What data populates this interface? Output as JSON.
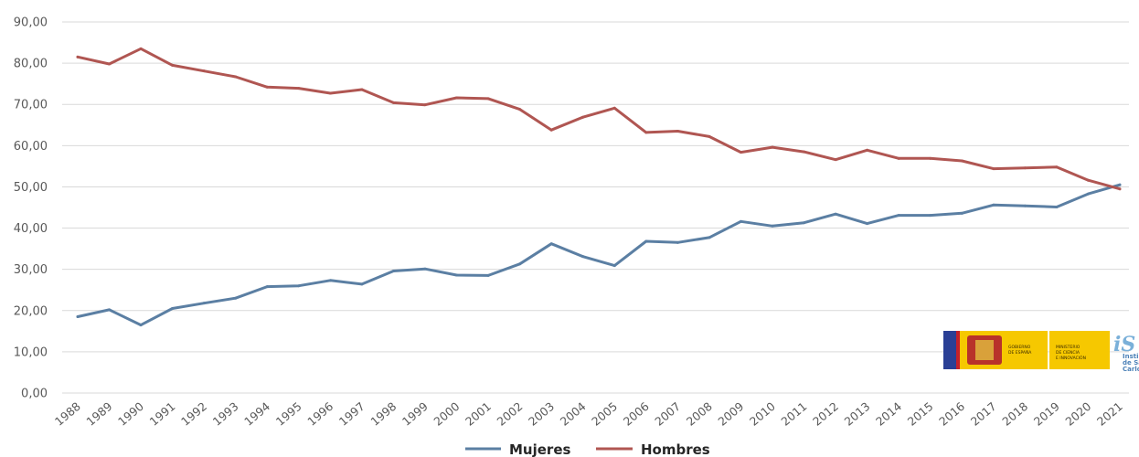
{
  "chart_data": {
    "type": "line",
    "x": [
      "1988",
      "1989",
      "1990",
      "1991",
      "1992",
      "1993",
      "1994",
      "1995",
      "1996",
      "1997",
      "1998",
      "1999",
      "2000",
      "2001",
      "2002",
      "2003",
      "2004",
      "2005",
      "2006",
      "2007",
      "2008",
      "2009",
      "2010",
      "2011",
      "2012",
      "2013",
      "2014",
      "2015",
      "2016",
      "2017",
      "2018",
      "2019",
      "2020",
      "2021"
    ],
    "series": [
      {
        "name": "Mujeres",
        "color": "#5b7fa3",
        "values": [
          18.5,
          20.2,
          16.5,
          20.5,
          21.8,
          23.0,
          25.8,
          26.0,
          27.3,
          26.4,
          29.6,
          30.1,
          28.6,
          28.5,
          31.3,
          36.2,
          33.1,
          30.9,
          36.8,
          36.5,
          37.7,
          41.6,
          40.5,
          41.3,
          43.4,
          41.1,
          43.1,
          43.1,
          43.6,
          45.6,
          45.4,
          45.1,
          48.3,
          50.5
        ]
      },
      {
        "name": "Hombres",
        "color": "#b05652",
        "values": [
          81.5,
          79.8,
          83.5,
          79.5,
          78.1,
          76.7,
          74.2,
          73.9,
          72.7,
          73.6,
          70.4,
          69.9,
          71.6,
          71.4,
          68.8,
          63.8,
          66.9,
          69.1,
          63.2,
          63.5,
          62.2,
          58.4,
          59.6,
          58.5,
          56.6,
          58.9,
          56.9,
          56.9,
          56.3,
          54.4,
          54.6,
          54.8,
          51.6,
          49.5
        ]
      }
    ],
    "yticks": [
      "0,00",
      "10,00",
      "20,00",
      "30,00",
      "40,00",
      "50,00",
      "60,00",
      "70,00",
      "80,00",
      "90,00"
    ],
    "ylim": [
      0,
      90
    ],
    "grid": true,
    "legend": "bottom-center"
  },
  "logo": {
    "gobierno": "GOBIERNO\nDE ESPAÑA",
    "ministerio": "MINISTERIO\nDE CIENCIA\nE INNOVACIÓN",
    "institute_mark": "iS",
    "institute_lines": [
      "Insti",
      "de Sa",
      "Carlo"
    ]
  }
}
